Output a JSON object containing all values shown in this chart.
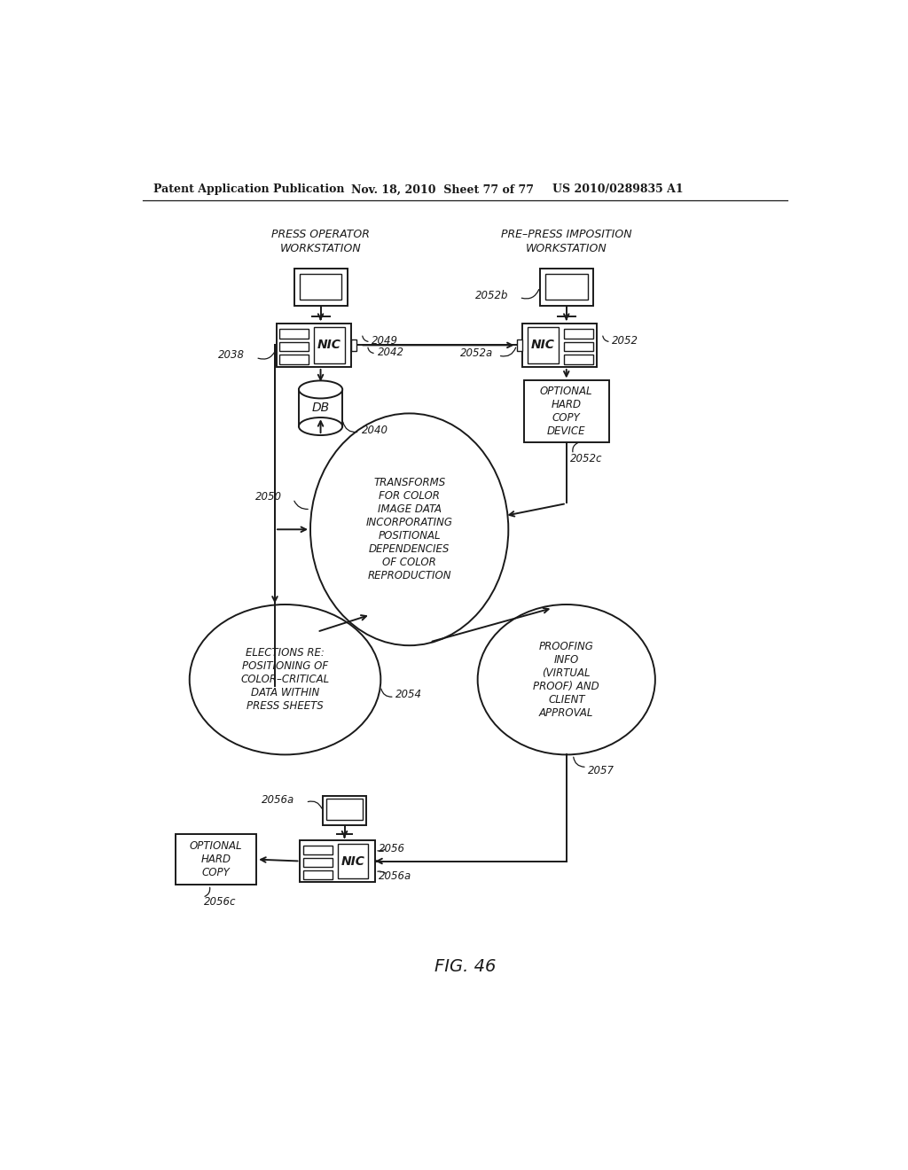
{
  "bg_color": "#ffffff",
  "lc": "#1a1a1a",
  "header_left": "Patent Application Publication",
  "header_mid": "Nov. 18, 2010  Sheet 77 of 77",
  "header_right": "US 2010/0289835 A1",
  "fig_label": "FIG. 46",
  "label_press_op": "PRESS OPERATOR\nWORKSTATION",
  "label_pre_press": "PRE–PRESS IMPOSITION\nWORKSTATION",
  "label_transforms": "TRANSFORMS\nFOR COLOR\nIMAGE DATA\nINCORPORATING\nPOSITIONAL\nDEPENDENCIES\nOF COLOR\nREPRODUCTION",
  "label_elections": "ELECTIONS RE:\nPOSITIONING OF\nCOLOR–CRITICAL\nDATA WITHIN\nPRESS SHEETS",
  "label_proofing": "PROOFING\nINFO\n(VIRTUAL\nPROOF) AND\nCLIENT\nAPPROVAL",
  "label_ohcd": "OPTIONAL\nHARD\nCOPY\nDEVICE",
  "label_ohc": "OPTIONAL\nHARD\nCOPY",
  "label_db": "DB",
  "label_nic": "NIC",
  "r2049": "2049",
  "r2042": "2042",
  "r2038": "2038",
  "r2040": "2040",
  "r2050": "2050",
  "r2052": "2052",
  "r2052a": "2052a",
  "r2052b": "2052b",
  "r2052c": "2052c",
  "r2054": "2054",
  "r2057": "2057",
  "r2056": "2056",
  "r2056a": "2056a",
  "r2056c": "2056c"
}
